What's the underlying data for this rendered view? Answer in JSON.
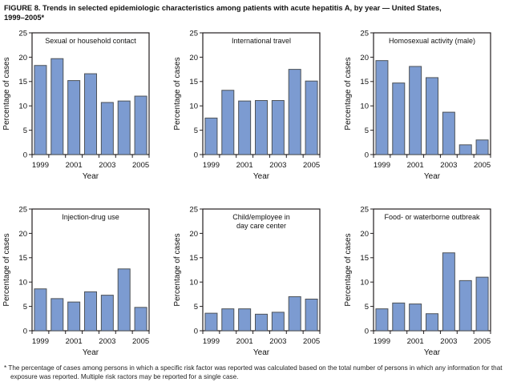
{
  "figure": {
    "title_lines": [
      "FIGURE 8. Trends in selected epidemiologic characteristics among patients with acute hepatitis A, by year — United States,",
      "1999–2005*"
    ],
    "footnote_marker": "*",
    "footnote_text": "The percentage of cases among persons in which a specific risk factor was reported was calculated based on the total number of persons in which any information for that exposure was reported. Multiple risk ractors may be reported for a single case."
  },
  "colors": {
    "bar_fill": "#7C9BD1",
    "bar_stroke": "#4E5358",
    "axis": "#231F20",
    "text": "#111111"
  },
  "chart_data": [
    {
      "type": "bar",
      "title": "Sexual or household contact",
      "title_lines": [
        "Sexual or household contact"
      ],
      "xlabel": "Year",
      "ylabel": "Percentage of cases",
      "ylim": [
        0,
        25
      ],
      "yticks": [
        0,
        5,
        10,
        15,
        20,
        25
      ],
      "categories": [
        "1999",
        "2000",
        "2001",
        "2002",
        "2003",
        "2004",
        "2005"
      ],
      "xtick_labels": [
        "1999",
        "2001",
        "2003",
        "2005"
      ],
      "values": [
        18.3,
        19.7,
        15.2,
        16.6,
        10.7,
        11.0,
        12.0
      ],
      "grid": false
    },
    {
      "type": "bar",
      "title": "International travel",
      "title_lines": [
        "International travel"
      ],
      "xlabel": "Year",
      "ylabel": "Percentage of cases",
      "ylim": [
        0,
        25
      ],
      "yticks": [
        0,
        5,
        10,
        15,
        20,
        25
      ],
      "categories": [
        "1999",
        "2000",
        "2001",
        "2002",
        "2003",
        "2004",
        "2005"
      ],
      "xtick_labels": [
        "1999",
        "2001",
        "2003",
        "2005"
      ],
      "values": [
        7.5,
        13.2,
        11.0,
        11.1,
        11.1,
        17.5,
        15.1
      ],
      "grid": false
    },
    {
      "type": "bar",
      "title": "Homosexual activity (male)",
      "title_lines": [
        "Homosexual activity (male)"
      ],
      "xlabel": "Year",
      "ylabel": "Percentage of cases",
      "ylim": [
        0,
        25
      ],
      "yticks": [
        0,
        5,
        10,
        15,
        20,
        25
      ],
      "categories": [
        "1999",
        "2000",
        "2001",
        "2002",
        "2003",
        "2004",
        "2005"
      ],
      "xtick_labels": [
        "1999",
        "2001",
        "2003",
        "2005"
      ],
      "values": [
        19.3,
        14.7,
        18.1,
        15.8,
        8.7,
        2.0,
        3.0
      ],
      "grid": false
    },
    {
      "type": "bar",
      "title": "Injection-drug use",
      "title_lines": [
        "Injection-drug use"
      ],
      "xlabel": "Year",
      "ylabel": "Percentage of cases",
      "ylim": [
        0,
        25
      ],
      "yticks": [
        0,
        5,
        10,
        15,
        20,
        25
      ],
      "categories": [
        "1999",
        "2000",
        "2001",
        "2002",
        "2003",
        "2004",
        "2005"
      ],
      "xtick_labels": [
        "1999",
        "2001",
        "2003",
        "2005"
      ],
      "values": [
        8.6,
        6.6,
        5.9,
        8.0,
        7.3,
        12.7,
        4.8
      ],
      "grid": false
    },
    {
      "type": "bar",
      "title": "Child/employee in day care center",
      "title_lines": [
        "Child/employee in",
        "day care center"
      ],
      "xlabel": "Year",
      "ylabel": "Percentage of cases",
      "ylim": [
        0,
        25
      ],
      "yticks": [
        0,
        5,
        10,
        15,
        20,
        25
      ],
      "categories": [
        "1999",
        "2000",
        "2001",
        "2002",
        "2003",
        "2004",
        "2005"
      ],
      "xtick_labels": [
        "1999",
        "2001",
        "2003",
        "2005"
      ],
      "values": [
        3.6,
        4.5,
        4.5,
        3.4,
        3.8,
        7.0,
        6.5
      ],
      "grid": false
    },
    {
      "type": "bar",
      "title": "Food- or waterborne outbreak",
      "title_lines": [
        "Food- or waterborne outbreak"
      ],
      "xlabel": "Year",
      "ylabel": "Percentage of cases",
      "ylim": [
        0,
        25
      ],
      "yticks": [
        0,
        5,
        10,
        15,
        20,
        25
      ],
      "categories": [
        "1999",
        "2000",
        "2001",
        "2002",
        "2003",
        "2004",
        "2005"
      ],
      "xtick_labels": [
        "1999",
        "2001",
        "2003",
        "2005"
      ],
      "values": [
        4.5,
        5.7,
        5.5,
        3.5,
        16.0,
        10.3,
        11.0
      ],
      "grid": false
    }
  ]
}
